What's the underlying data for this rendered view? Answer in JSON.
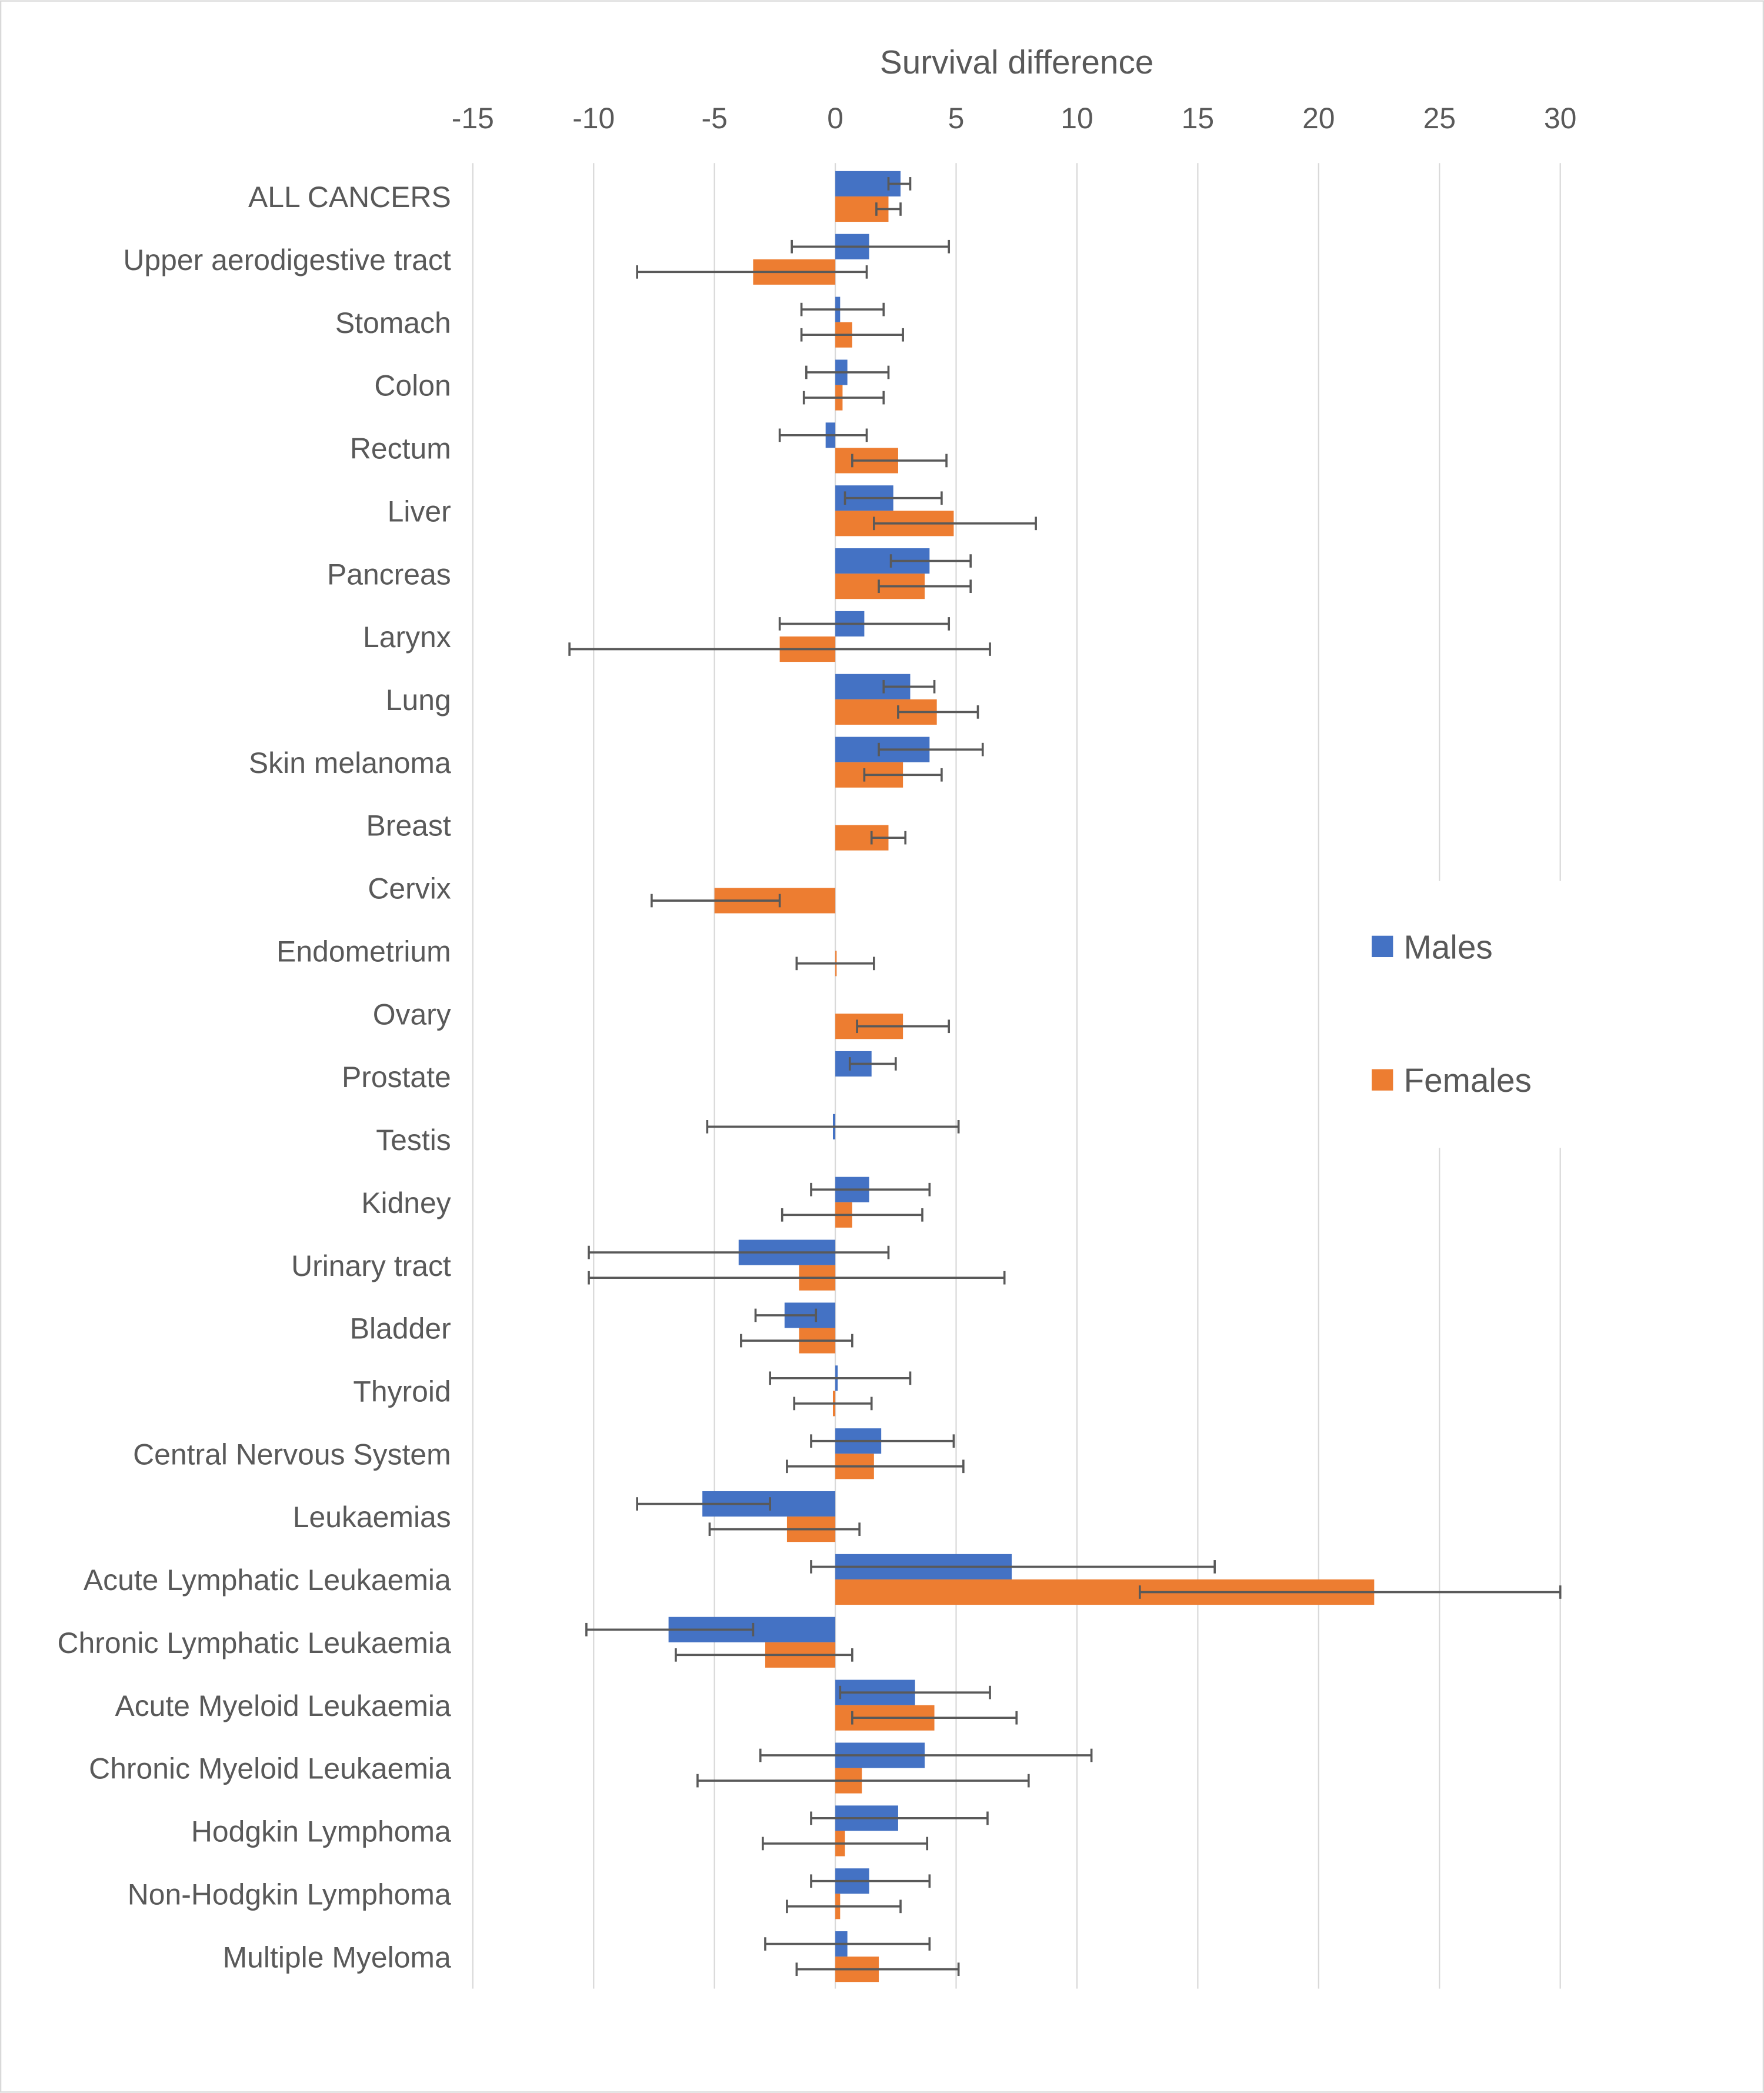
{
  "chart_data": {
    "type": "bar",
    "orientation": "horizontal",
    "title": "Survival difference",
    "xlim": [
      -15,
      30
    ],
    "xticks": [
      -15,
      -10,
      -5,
      0,
      5,
      10,
      15,
      20,
      25,
      30
    ],
    "grid": true,
    "legend_position": "right",
    "categories": [
      "ALL CANCERS",
      "Upper aerodigestive tract",
      "Stomach",
      "Colon",
      "Rectum",
      "Liver",
      "Pancreas",
      "Larynx",
      "Lung",
      "Skin melanoma",
      "Breast",
      "Cervix",
      "Endometrium",
      "Ovary",
      "Prostate",
      "Testis",
      "Kidney",
      "Urinary tract",
      "Bladder",
      "Thyroid",
      "Central Nervous System",
      "Leukaemias",
      "Acute Lymphatic Leukaemia",
      "Chronic Lymphatic Leukaemia",
      "Acute Myeloid Leukaemia",
      "Chronic Myeloid Leukaemia",
      "Hodgkin Lymphoma",
      "Non-Hodgkin Lymphoma",
      "Multiple Myeloma"
    ],
    "series": [
      {
        "name": "Males",
        "color": "#4472C4",
        "values": [
          2.7,
          1.4,
          0.2,
          0.5,
          -0.4,
          2.4,
          3.9,
          1.2,
          3.1,
          3.9,
          null,
          null,
          null,
          null,
          1.5,
          -0.1,
          1.4,
          -4.0,
          -2.1,
          0.1,
          1.9,
          -5.5,
          7.3,
          -6.9,
          3.3,
          3.7,
          2.6,
          1.4,
          0.5
        ],
        "ci_low": [
          2.2,
          -1.8,
          -1.4,
          -1.2,
          -2.3,
          0.4,
          2.3,
          -2.3,
          2.0,
          1.8,
          null,
          null,
          null,
          null,
          0.6,
          -5.3,
          -1.0,
          -10.2,
          -3.3,
          -2.7,
          -1.0,
          -8.2,
          -1.0,
          -10.3,
          0.2,
          -3.1,
          -1.0,
          -1.0,
          -2.9
        ],
        "ci_high": [
          3.1,
          4.7,
          2.0,
          2.2,
          1.3,
          4.4,
          5.6,
          4.7,
          4.1,
          6.1,
          null,
          null,
          null,
          null,
          2.5,
          5.1,
          3.9,
          2.2,
          -0.8,
          3.1,
          4.9,
          -2.7,
          15.7,
          -3.4,
          6.4,
          10.6,
          6.3,
          3.9,
          3.9
        ]
      },
      {
        "name": "Females",
        "color": "#ED7D31",
        "values": [
          2.2,
          -3.4,
          0.7,
          0.3,
          2.6,
          4.9,
          3.7,
          -2.3,
          4.2,
          2.8,
          2.2,
          -5.0,
          0.0,
          2.8,
          null,
          null,
          0.7,
          -1.5,
          -1.5,
          -0.1,
          1.6,
          -2.0,
          22.3,
          -2.9,
          4.1,
          1.1,
          0.4,
          0.2,
          1.8
        ],
        "ci_low": [
          1.7,
          -8.2,
          -1.4,
          -1.3,
          0.7,
          1.6,
          1.8,
          -11.0,
          2.6,
          1.2,
          1.5,
          -7.6,
          -1.6,
          0.9,
          null,
          null,
          -2.2,
          -10.2,
          -3.9,
          -1.7,
          -2.0,
          -5.2,
          12.6,
          -6.6,
          0.7,
          -5.7,
          -3.0,
          -2.0,
          -1.6
        ],
        "ci_high": [
          2.7,
          1.3,
          2.8,
          2.0,
          4.6,
          8.3,
          5.6,
          6.4,
          5.9,
          4.4,
          2.9,
          -2.3,
          1.6,
          4.7,
          null,
          null,
          3.6,
          7.0,
          0.7,
          1.5,
          5.3,
          1.0,
          30.0,
          0.7,
          7.5,
          8.0,
          3.8,
          2.7,
          5.1
        ]
      }
    ]
  }
}
